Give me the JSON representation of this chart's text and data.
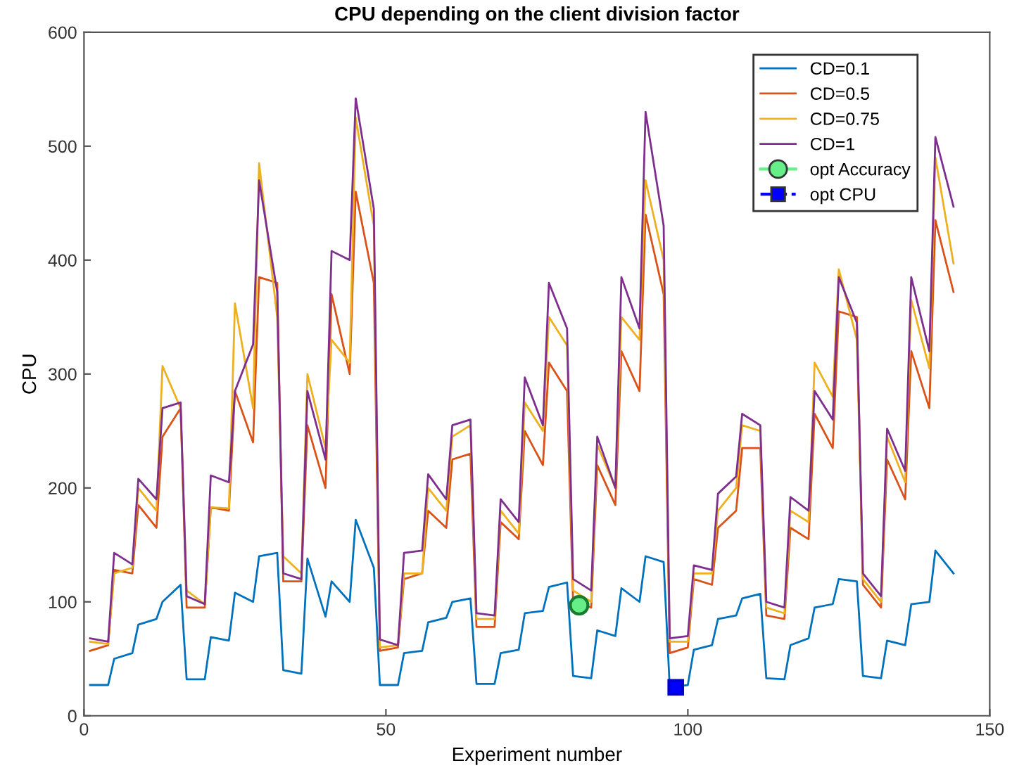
{
  "chart_data": {
    "type": "line",
    "title": "CPU depending on the client division factor",
    "xlabel": "Experiment number",
    "ylabel": "CPU",
    "xlim": [
      0,
      150
    ],
    "xticks": [
      0,
      50,
      100,
      150
    ],
    "ylim": [
      0,
      600
    ],
    "yticks": [
      0,
      100,
      200,
      300,
      400,
      500,
      600
    ],
    "grid": false,
    "legend": "top right",
    "marker": "none",
    "line_style": "solid",
    "series": [
      {
        "name": "CD=0.1",
        "color": "#0072bd",
        "x": [
          1,
          4,
          5,
          8,
          9,
          12,
          13,
          16,
          17,
          20,
          21,
          24,
          25,
          28,
          29,
          32,
          33,
          36,
          37,
          40,
          41,
          44,
          45,
          48,
          49,
          52,
          53,
          56,
          57,
          60,
          61,
          64,
          65,
          68,
          69,
          72,
          73,
          76,
          77,
          80,
          81,
          84,
          85,
          88,
          89,
          92,
          93,
          96,
          97,
          100,
          101,
          104,
          105,
          108,
          109,
          112,
          113,
          116,
          117,
          120,
          121,
          124,
          125,
          128,
          129,
          132,
          133,
          136,
          137,
          140,
          141,
          144
        ],
        "values": [
          27,
          27,
          50,
          55,
          80,
          85,
          100,
          115,
          32,
          32,
          69,
          66,
          108,
          100,
          140,
          143,
          40,
          37,
          138,
          87,
          118,
          100,
          172,
          130,
          27,
          27,
          55,
          57,
          82,
          86,
          100,
          103,
          28,
          28,
          55,
          58,
          90,
          92,
          113,
          117,
          35,
          33,
          75,
          70,
          112,
          100,
          140,
          135,
          25,
          27,
          58,
          62,
          85,
          88,
          103,
          107,
          33,
          32,
          62,
          68,
          95,
          98,
          120,
          118,
          35,
          33,
          66,
          62,
          98,
          100,
          145,
          125
        ]
      },
      {
        "name": "CD=0.5",
        "color": "#d95319",
        "x": [
          1,
          4,
          5,
          8,
          9,
          12,
          13,
          16,
          17,
          20,
          21,
          24,
          25,
          28,
          29,
          32,
          33,
          36,
          37,
          40,
          41,
          44,
          45,
          48,
          49,
          52,
          53,
          56,
          57,
          60,
          61,
          64,
          65,
          68,
          69,
          72,
          73,
          76,
          77,
          80,
          81,
          84,
          85,
          88,
          89,
          92,
          93,
          96,
          97,
          100,
          101,
          104,
          105,
          108,
          109,
          112,
          113,
          116,
          117,
          120,
          121,
          124,
          125,
          128,
          129,
          132,
          133,
          136,
          137,
          140,
          141,
          144
        ],
        "values": [
          57,
          62,
          128,
          125,
          185,
          165,
          245,
          270,
          95,
          95,
          183,
          180,
          285,
          240,
          385,
          380,
          118,
          118,
          255,
          200,
          370,
          300,
          460,
          380,
          57,
          60,
          120,
          125,
          180,
          165,
          225,
          230,
          78,
          78,
          170,
          155,
          250,
          220,
          310,
          285,
          100,
          95,
          220,
          185,
          320,
          285,
          440,
          370,
          55,
          60,
          120,
          115,
          165,
          180,
          235,
          235,
          88,
          85,
          165,
          155,
          265,
          235,
          355,
          350,
          115,
          95,
          225,
          190,
          320,
          270,
          435,
          372
        ]
      },
      {
        "name": "CD=0.75",
        "color": "#edb120",
        "x": [
          1,
          4,
          5,
          8,
          9,
          12,
          13,
          16,
          17,
          20,
          21,
          24,
          25,
          28,
          29,
          32,
          33,
          36,
          37,
          40,
          41,
          44,
          45,
          48,
          49,
          52,
          53,
          56,
          57,
          60,
          61,
          64,
          65,
          68,
          69,
          72,
          73,
          76,
          77,
          80,
          81,
          84,
          85,
          88,
          89,
          92,
          93,
          96,
          97,
          100,
          101,
          104,
          105,
          108,
          109,
          112,
          113,
          116,
          117,
          120,
          121,
          124,
          125,
          128,
          129,
          132,
          133,
          136,
          137,
          140,
          141,
          144
        ],
        "values": [
          65,
          63,
          125,
          130,
          200,
          180,
          307,
          270,
          110,
          98,
          183,
          182,
          362,
          270,
          485,
          350,
          140,
          125,
          300,
          235,
          330,
          310,
          525,
          430,
          60,
          62,
          125,
          125,
          200,
          180,
          245,
          255,
          85,
          85,
          180,
          160,
          275,
          250,
          350,
          325,
          110,
          100,
          238,
          200,
          350,
          330,
          470,
          400,
          65,
          65,
          125,
          125,
          180,
          200,
          255,
          250,
          95,
          90,
          180,
          170,
          310,
          280,
          392,
          330,
          120,
          100,
          245,
          205,
          365,
          305,
          490,
          397
        ]
      },
      {
        "name": "CD=1",
        "color": "#7e2f8e",
        "x": [
          1,
          4,
          5,
          8,
          9,
          12,
          13,
          16,
          17,
          20,
          21,
          24,
          25,
          28,
          29,
          32,
          33,
          36,
          37,
          40,
          41,
          44,
          45,
          48,
          49,
          52,
          53,
          56,
          57,
          60,
          61,
          64,
          65,
          68,
          69,
          72,
          73,
          76,
          77,
          80,
          81,
          84,
          85,
          88,
          89,
          92,
          93,
          96,
          97,
          100,
          101,
          104,
          105,
          108,
          109,
          112,
          113,
          116,
          117,
          120,
          121,
          124,
          125,
          128,
          129,
          132,
          133,
          136,
          137,
          140,
          141,
          144
        ],
        "values": [
          68,
          65,
          143,
          133,
          208,
          190,
          270,
          275,
          105,
          98,
          211,
          205,
          285,
          326,
          470,
          372,
          125,
          120,
          285,
          225,
          408,
          400,
          542,
          445,
          67,
          62,
          143,
          145,
          212,
          190,
          255,
          260,
          90,
          88,
          190,
          170,
          297,
          255,
          380,
          340,
          120,
          110,
          245,
          200,
          385,
          340,
          530,
          430,
          68,
          70,
          132,
          128,
          195,
          210,
          265,
          255,
          100,
          95,
          192,
          180,
          285,
          260,
          385,
          345,
          125,
          105,
          252,
          215,
          385,
          320,
          508,
          447
        ]
      },
      {
        "name": "opt Accuracy",
        "color": "#66ee88",
        "x": [
          82
        ],
        "values": [
          97
        ],
        "marker": "circle",
        "line_style": "solid"
      },
      {
        "name": "opt CPU",
        "color": "#0000ff",
        "x": [
          98
        ],
        "values": [
          25
        ],
        "marker": "square",
        "line_style": "dashed"
      }
    ]
  }
}
